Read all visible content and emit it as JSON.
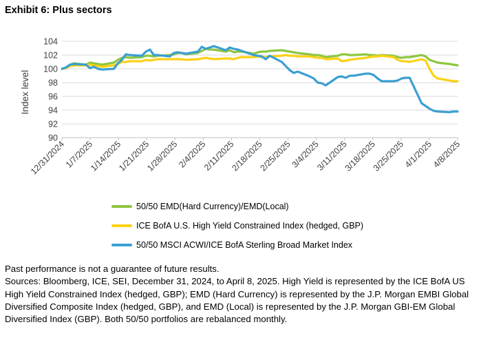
{
  "exhibit_title": "Exhibit 6: Plus sectors",
  "chart_data": {
    "type": "line",
    "title": "Exhibit 6: Plus sectors",
    "xlabel": "",
    "ylabel": "Index level",
    "ylim": [
      90,
      104
    ],
    "yticks": [
      90,
      92,
      94,
      96,
      98,
      100,
      102,
      104
    ],
    "xticks": [
      "12/31/2024",
      "1/7/2025",
      "1/14/2025",
      "1/21/2025",
      "1/28/2025",
      "2/4/2025",
      "2/11/2025",
      "2/18/2025",
      "2/25/2025",
      "3/4/2025",
      "3/11/2025",
      "3/18/2025",
      "3/25/2025",
      "4/1/2025",
      "4/8/2025"
    ],
    "x_start": "12/31/2024",
    "x_end": "4/8/2025",
    "grid": "horizontal",
    "legend_position": "bottom",
    "series": [
      {
        "name": "50/50 EMD(Hard Currency)/EMD(Local)",
        "color": "#8dc63f",
        "x": [
          0,
          1,
          2,
          3,
          6,
          7,
          8,
          9,
          10,
          13,
          14,
          15,
          16,
          17,
          20,
          21,
          22,
          23,
          24,
          27,
          28,
          29,
          30,
          31,
          34,
          35,
          36,
          37,
          38,
          41,
          42,
          43,
          44,
          45,
          48,
          49,
          50,
          51,
          52,
          55,
          56,
          57,
          58,
          59,
          62,
          63,
          64,
          65,
          66,
          69,
          70,
          71,
          72,
          73,
          76,
          77,
          78,
          79,
          80,
          83,
          84,
          85,
          86,
          87,
          90,
          91,
          92,
          93,
          94,
          97,
          98,
          99
        ],
        "values": [
          100.0,
          100.1,
          100.6,
          100.8,
          100.6,
          100.9,
          100.8,
          100.7,
          100.6,
          100.9,
          101.3,
          101.6,
          101.7,
          101.6,
          101.7,
          101.9,
          101.9,
          101.8,
          101.9,
          102.0,
          102.1,
          102.3,
          102.3,
          102.1,
          102.3,
          102.6,
          102.9,
          102.8,
          102.8,
          102.5,
          102.7,
          102.4,
          102.5,
          102.5,
          102.2,
          102.4,
          102.5,
          102.5,
          102.6,
          102.7,
          102.6,
          102.5,
          102.4,
          102.3,
          102.1,
          102.0,
          102.0,
          101.9,
          101.7,
          101.9,
          102.1,
          102.1,
          102.0,
          102.0,
          102.1,
          102.0,
          102.0,
          101.9,
          102.0,
          101.9,
          101.7,
          101.6,
          101.7,
          101.7,
          102.0,
          101.8,
          101.3,
          101.1,
          100.9,
          100.7,
          100.6,
          100.5
        ]
      },
      {
        "name": "ICE BofA U.S. High Yield Constrained Index (hedged, GBP)",
        "color": "#fcd116",
        "x": [
          0,
          1,
          2,
          3,
          6,
          7,
          8,
          9,
          10,
          13,
          14,
          15,
          16,
          17,
          20,
          21,
          22,
          23,
          24,
          27,
          28,
          29,
          30,
          31,
          34,
          35,
          36,
          37,
          38,
          41,
          42,
          43,
          44,
          45,
          48,
          49,
          50,
          51,
          52,
          55,
          56,
          57,
          58,
          59,
          62,
          63,
          64,
          65,
          66,
          69,
          70,
          71,
          72,
          73,
          76,
          77,
          78,
          79,
          80,
          83,
          84,
          85,
          86,
          87,
          90,
          91,
          92,
          93,
          94,
          97,
          98,
          99
        ],
        "values": [
          100.0,
          100.1,
          100.4,
          100.5,
          100.5,
          100.6,
          100.5,
          100.4,
          100.3,
          100.5,
          100.7,
          101.0,
          101.0,
          101.1,
          101.1,
          101.3,
          101.2,
          101.3,
          101.4,
          101.4,
          101.4,
          101.4,
          101.4,
          101.3,
          101.4,
          101.5,
          101.6,
          101.5,
          101.4,
          101.5,
          101.5,
          101.4,
          101.6,
          101.7,
          101.7,
          101.8,
          101.7,
          101.7,
          101.8,
          101.9,
          102.0,
          101.9,
          101.9,
          101.8,
          101.8,
          101.7,
          101.6,
          101.6,
          101.4,
          101.5,
          101.1,
          101.2,
          101.3,
          101.4,
          101.6,
          101.7,
          101.8,
          101.8,
          101.9,
          101.7,
          101.3,
          101.1,
          101.1,
          101.0,
          101.4,
          101.2,
          100.0,
          99.0,
          98.6,
          98.3,
          98.2,
          98.2
        ]
      },
      {
        "name": "50/50 MSCI ACWI/ICE BofA Sterling Broad Market Index",
        "color": "#3b9fd1",
        "x": [
          0,
          1,
          2,
          3,
          6,
          7,
          8,
          9,
          10,
          13,
          14,
          15,
          16,
          17,
          20,
          21,
          22,
          23,
          24,
          27,
          28,
          29,
          30,
          31,
          34,
          35,
          36,
          37,
          38,
          41,
          42,
          43,
          44,
          45,
          48,
          49,
          50,
          51,
          52,
          55,
          56,
          57,
          58,
          59,
          62,
          63,
          64,
          65,
          66,
          69,
          70,
          71,
          72,
          73,
          76,
          77,
          78,
          79,
          80,
          83,
          84,
          85,
          86,
          87,
          90,
          91,
          92,
          93,
          94,
          97,
          98,
          99
        ],
        "values": [
          100.0,
          100.2,
          100.6,
          100.7,
          100.6,
          100.1,
          100.3,
          100.0,
          99.9,
          100.0,
          100.8,
          101.3,
          102.1,
          102.0,
          101.9,
          102.5,
          102.8,
          102.0,
          102.0,
          101.8,
          102.3,
          102.4,
          102.3,
          102.2,
          102.5,
          103.2,
          102.9,
          103.1,
          103.3,
          102.7,
          103.1,
          102.9,
          102.8,
          102.6,
          102.0,
          101.9,
          101.8,
          101.4,
          101.9,
          101.0,
          100.4,
          99.8,
          99.4,
          99.6,
          98.9,
          98.6,
          98.0,
          97.9,
          97.6,
          98.8,
          98.9,
          98.7,
          99.0,
          99.0,
          99.3,
          99.3,
          99.1,
          98.6,
          98.2,
          98.2,
          98.3,
          98.6,
          98.7,
          98.7,
          95.0,
          94.6,
          94.2,
          93.9,
          93.8,
          93.7,
          93.8,
          93.8
        ]
      }
    ]
  },
  "footer": {
    "disclaimer": "Past performance is not a guarantee of future results.",
    "sources": "Sources: Bloomberg, ICE, SEI, December 31, 2024, to April 8, 2025. High Yield is represented by the ICE BofA US High Yield Constrained Index (hedged, GBP); EMD (Hard Currency) is represented by the J.P. Morgan EMBI Global Diversified Composite Index (hedged, GBP), and EMD (Local) is represented by the J.P. Morgan GBI-EM Global Diversified Index (GBP). Both 50/50 portfolios are rebalanced monthly."
  }
}
